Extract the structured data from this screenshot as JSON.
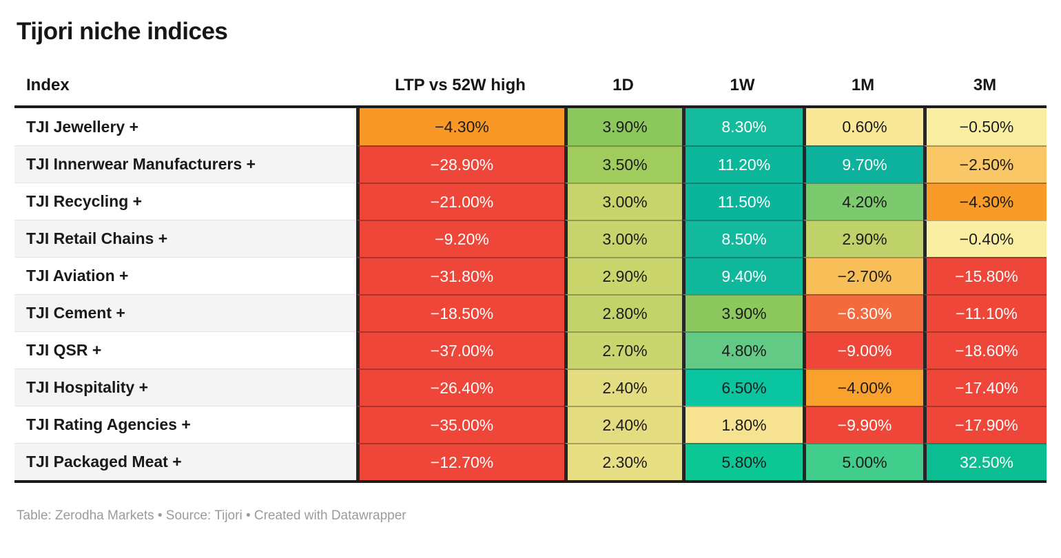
{
  "title": "Tijori niche indices",
  "columns": [
    {
      "label": "Index"
    },
    {
      "label": "LTP vs 52W high"
    },
    {
      "label": "1D"
    },
    {
      "label": "1W"
    },
    {
      "label": "1M"
    },
    {
      "label": "3M"
    }
  ],
  "rows": [
    {
      "index": "TJI Jewellery +",
      "cells": [
        {
          "value": "−4.30%",
          "bg": "#fa9827",
          "fg": "#1c1c1c"
        },
        {
          "value": "3.90%",
          "bg": "#8cc85e",
          "fg": "#1c1c1c"
        },
        {
          "value": "8.30%",
          "bg": "#13ba9c",
          "fg": "#ffffff"
        },
        {
          "value": "0.60%",
          "bg": "#f9e897",
          "fg": "#1c1c1c"
        },
        {
          "value": "−0.50%",
          "bg": "#f9eea1",
          "fg": "#1c1c1c"
        }
      ]
    },
    {
      "index": "TJI Innerwear Manufacturers +",
      "cells": [
        {
          "value": "−28.90%",
          "bg": "#ee4639",
          "fg": "#ffffff"
        },
        {
          "value": "3.50%",
          "bg": "#a0cc5e",
          "fg": "#1c1c1c"
        },
        {
          "value": "11.20%",
          "bg": "#0bb69b",
          "fg": "#ffffff"
        },
        {
          "value": "9.70%",
          "bg": "#0cb29b",
          "fg": "#ffffff"
        },
        {
          "value": "−2.50%",
          "bg": "#f9c765",
          "fg": "#1c1c1c"
        }
      ]
    },
    {
      "index": "TJI Recycling +",
      "cells": [
        {
          "value": "−21.00%",
          "bg": "#ee4639",
          "fg": "#ffffff"
        },
        {
          "value": "3.00%",
          "bg": "#c6d46b",
          "fg": "#1c1c1c"
        },
        {
          "value": "11.50%",
          "bg": "#0ab59b",
          "fg": "#ffffff"
        },
        {
          "value": "4.20%",
          "bg": "#7dca6e",
          "fg": "#1c1c1c"
        },
        {
          "value": "−4.30%",
          "bg": "#f99b28",
          "fg": "#1c1c1c"
        }
      ]
    },
    {
      "index": "TJI Retail Chains +",
      "cells": [
        {
          "value": "−9.20%",
          "bg": "#ee4639",
          "fg": "#ffffff"
        },
        {
          "value": "3.00%",
          "bg": "#c6d46b",
          "fg": "#1c1c1c"
        },
        {
          "value": "8.50%",
          "bg": "#12b99c",
          "fg": "#ffffff"
        },
        {
          "value": "2.90%",
          "bg": "#bed269",
          "fg": "#1c1c1c"
        },
        {
          "value": "−0.40%",
          "bg": "#f9eea1",
          "fg": "#1c1c1c"
        }
      ]
    },
    {
      "index": "TJI Aviation +",
      "cells": [
        {
          "value": "−31.80%",
          "bg": "#ee4639",
          "fg": "#ffffff"
        },
        {
          "value": "2.90%",
          "bg": "#cad66c",
          "fg": "#1c1c1c"
        },
        {
          "value": "9.40%",
          "bg": "#0fb79b",
          "fg": "#ffffff"
        },
        {
          "value": "−2.70%",
          "bg": "#f8bf58",
          "fg": "#1c1c1c"
        },
        {
          "value": "−15.80%",
          "bg": "#ee4639",
          "fg": "#ffffff"
        }
      ]
    },
    {
      "index": "TJI Cement +",
      "cells": [
        {
          "value": "−18.50%",
          "bg": "#ee4639",
          "fg": "#ffffff"
        },
        {
          "value": "2.80%",
          "bg": "#c3d36c",
          "fg": "#1c1c1c"
        },
        {
          "value": "3.90%",
          "bg": "#8cc85e",
          "fg": "#1c1c1c"
        },
        {
          "value": "−6.30%",
          "bg": "#f26a3d",
          "fg": "#ffffff"
        },
        {
          "value": "−11.10%",
          "bg": "#ee4639",
          "fg": "#ffffff"
        }
      ]
    },
    {
      "index": "TJI QSR +",
      "cells": [
        {
          "value": "−37.00%",
          "bg": "#ee4639",
          "fg": "#ffffff"
        },
        {
          "value": "2.70%",
          "bg": "#c9d56e",
          "fg": "#1c1c1c"
        },
        {
          "value": "4.80%",
          "bg": "#63ca86",
          "fg": "#1c1c1c"
        },
        {
          "value": "−9.00%",
          "bg": "#ee4639",
          "fg": "#ffffff"
        },
        {
          "value": "−18.60%",
          "bg": "#ee4639",
          "fg": "#ffffff"
        }
      ]
    },
    {
      "index": "TJI Hospitality +",
      "cells": [
        {
          "value": "−26.40%",
          "bg": "#ee4639",
          "fg": "#ffffff"
        },
        {
          "value": "2.40%",
          "bg": "#e4dc80",
          "fg": "#1c1c1c"
        },
        {
          "value": "6.50%",
          "bg": "#09c5a0",
          "fg": "#1c1c1c"
        },
        {
          "value": "−4.00%",
          "bg": "#f9a02d",
          "fg": "#1c1c1c"
        },
        {
          "value": "−17.40%",
          "bg": "#ee4639",
          "fg": "#ffffff"
        }
      ]
    },
    {
      "index": "TJI Rating Agencies +",
      "cells": [
        {
          "value": "−35.00%",
          "bg": "#ee4639",
          "fg": "#ffffff"
        },
        {
          "value": "2.40%",
          "bg": "#e4dc80",
          "fg": "#1c1c1c"
        },
        {
          "value": "1.80%",
          "bg": "#f7e292",
          "fg": "#1c1c1c"
        },
        {
          "value": "−9.90%",
          "bg": "#ee4639",
          "fg": "#ffffff"
        },
        {
          "value": "−17.90%",
          "bg": "#ee4639",
          "fg": "#ffffff"
        }
      ]
    },
    {
      "index": "TJI Packaged Meat +",
      "cells": [
        {
          "value": "−12.70%",
          "bg": "#ee4639",
          "fg": "#ffffff"
        },
        {
          "value": "2.30%",
          "bg": "#e8de84",
          "fg": "#1c1c1c"
        },
        {
          "value": "5.80%",
          "bg": "#0cc894",
          "fg": "#1c1c1c"
        },
        {
          "value": "5.00%",
          "bg": "#41ce8c",
          "fg": "#1c1c1c"
        },
        {
          "value": "32.50%",
          "bg": "#0cbd92",
          "fg": "#ffffff"
        }
      ]
    }
  ],
  "footer": "Table: Zerodha Markets • Source: Tijori • Created with Datawrapper",
  "colors": {
    "strong_negative": "#ee4639",
    "negative": "#f99b28",
    "neutral": "#f9e897",
    "positive": "#8cc85e",
    "strong_positive": "#0bb69b",
    "border_dark": "#262626"
  },
  "chart_data": {
    "type": "table",
    "title": "Tijori niche indices",
    "columns": [
      "Index",
      "LTP vs 52W high",
      "1D",
      "1W",
      "1M",
      "3M"
    ],
    "rows": [
      [
        "TJI Jewellery +",
        -4.3,
        3.9,
        8.3,
        0.6,
        -0.5
      ],
      [
        "TJI Innerwear Manufacturers +",
        -28.9,
        3.5,
        11.2,
        9.7,
        -2.5
      ],
      [
        "TJI Recycling +",
        -21.0,
        3.0,
        11.5,
        4.2,
        -4.3
      ],
      [
        "TJI Retail Chains +",
        -9.2,
        3.0,
        8.5,
        2.9,
        -0.4
      ],
      [
        "TJI Aviation +",
        -31.8,
        2.9,
        9.4,
        -2.7,
        -15.8
      ],
      [
        "TJI Cement +",
        -18.5,
        2.8,
        3.9,
        -6.3,
        -11.1
      ],
      [
        "TJI QSR +",
        -37.0,
        2.7,
        4.8,
        -9.0,
        -18.6
      ],
      [
        "TJI Hospitality +",
        -26.4,
        2.4,
        6.5,
        -4.0,
        -17.4
      ],
      [
        "TJI Rating Agencies +",
        -35.0,
        2.4,
        1.8,
        -9.9,
        -17.9
      ],
      [
        "TJI Packaged Meat +",
        -12.7,
        2.3,
        5.8,
        5.0,
        32.5
      ]
    ],
    "units": "percent",
    "color_encoding": "heatmap: red = negative, yellow = near zero, green/teal = positive",
    "source": "Table: Zerodha Markets • Source: Tijori • Created with Datawrapper"
  }
}
